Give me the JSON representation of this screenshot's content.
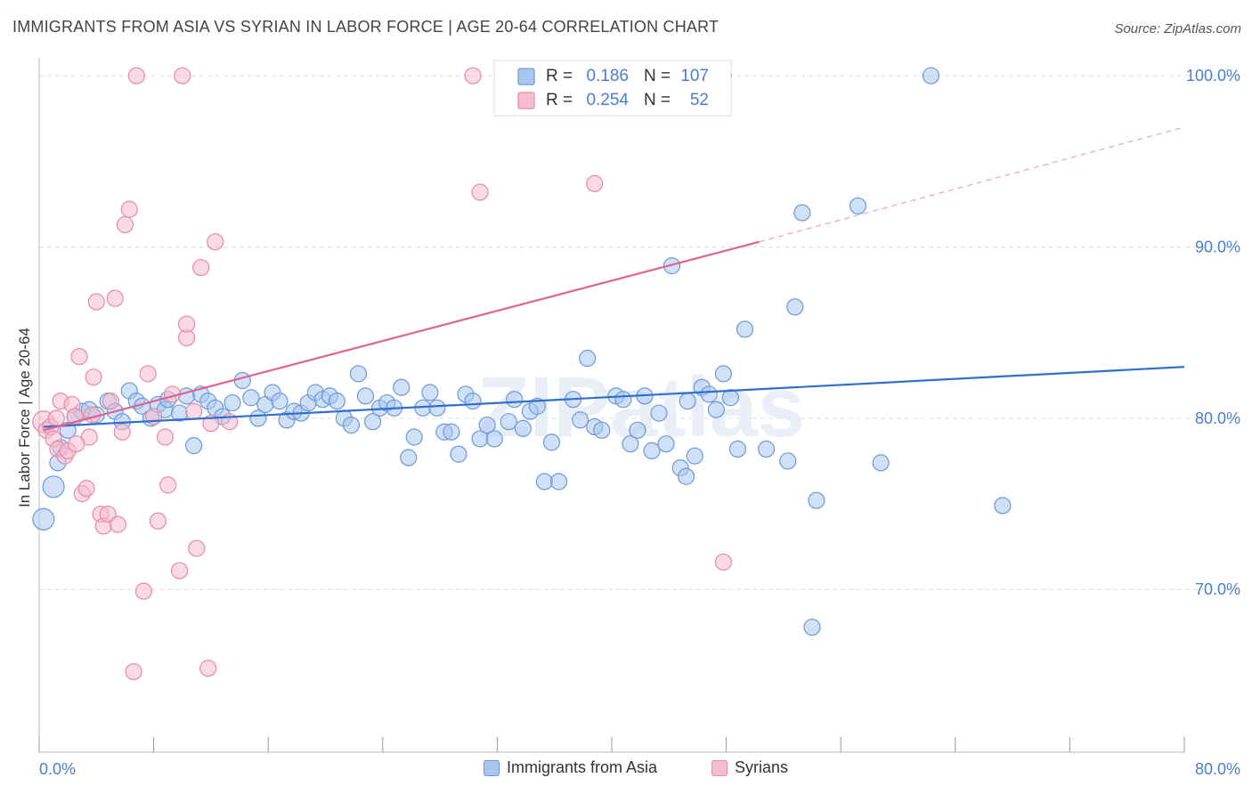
{
  "header": {
    "title": "IMMIGRANTS FROM ASIA VS SYRIAN IN LABOR FORCE | AGE 20-64 CORRELATION CHART",
    "source": "Source: ZipAtlas.com"
  },
  "watermark": "ZIPatlas",
  "colors": {
    "blue_fill": "#a9c7ee",
    "blue_stroke": "#6c9ad6",
    "blue_line": "#2f6fcf",
    "pink_fill": "#f6bcd0",
    "pink_stroke": "#e58aa9",
    "pink_line": "#e0628e",
    "tick_label": "#4a7fd0",
    "grid": "#dddddd"
  },
  "legend_stats": {
    "rows": [
      {
        "r_label": "R =",
        "r_value": "0.186",
        "n_label": "N =",
        "n_value": "107"
      },
      {
        "r_label": "R =",
        "r_value": "0.254",
        "n_label": "N =",
        "n_value": "52"
      }
    ]
  },
  "legend_bottom": [
    "Immigrants from Asia",
    "Syrians"
  ],
  "chart_data": {
    "type": "scatter",
    "title": "IMMIGRANTS FROM ASIA VS SYRIAN IN LABOR FORCE | AGE 20-64 CORRELATION CHART",
    "xlabel": "",
    "ylabel": "In Labor Force | Age 20-64",
    "xlim": [
      0,
      80
    ],
    "ylim": [
      60.5,
      101.2
    ],
    "x_tick_labels": [
      "0.0%",
      "80.0%"
    ],
    "y_ticks": [
      70,
      80,
      90,
      100
    ],
    "y_tick_labels": [
      "70.0%",
      "80.0%",
      "90.0%",
      "100.0%"
    ],
    "grid": "horizontal dashed",
    "series": [
      {
        "name": "Immigrants from Asia",
        "color": "#a9c7ee",
        "r": 0.186,
        "n": 107,
        "trend": {
          "x": [
            0.3,
            80
          ],
          "y": [
            79.5,
            83.0
          ]
        },
        "points": [
          [
            0.3,
            74.1,
            2
          ],
          [
            1.0,
            76.0,
            2
          ],
          [
            1.3,
            77.4,
            1
          ],
          [
            1.5,
            78.3,
            1
          ],
          [
            2.0,
            79.3,
            1
          ],
          [
            2.5,
            80.1,
            1
          ],
          [
            3.0,
            80.4,
            1
          ],
          [
            3.5,
            80.5,
            1
          ],
          [
            4.0,
            80.2,
            1
          ],
          [
            4.8,
            81.0,
            1
          ],
          [
            5.3,
            80.4,
            1
          ],
          [
            5.8,
            79.8,
            1
          ],
          [
            6.3,
            81.6,
            1
          ],
          [
            6.8,
            81.0,
            1
          ],
          [
            7.2,
            80.7,
            1
          ],
          [
            7.8,
            80.0,
            1
          ],
          [
            8.3,
            80.8,
            1
          ],
          [
            8.8,
            80.5,
            1
          ],
          [
            9.0,
            81.1,
            1
          ],
          [
            9.8,
            80.3,
            1
          ],
          [
            10.3,
            81.3,
            1
          ],
          [
            10.8,
            78.4,
            1
          ],
          [
            11.3,
            81.4,
            1
          ],
          [
            11.8,
            81.0,
            1
          ],
          [
            12.3,
            80.6,
            1
          ],
          [
            12.8,
            80.1,
            1
          ],
          [
            13.5,
            80.9,
            1
          ],
          [
            14.2,
            82.2,
            1
          ],
          [
            14.8,
            81.2,
            1
          ],
          [
            15.3,
            80.0,
            1
          ],
          [
            15.8,
            80.8,
            1
          ],
          [
            16.3,
            81.5,
            1
          ],
          [
            16.8,
            81.0,
            1
          ],
          [
            17.3,
            79.9,
            1
          ],
          [
            17.8,
            80.4,
            1
          ],
          [
            18.3,
            80.3,
            1
          ],
          [
            18.8,
            80.9,
            1
          ],
          [
            19.3,
            81.5,
            1
          ],
          [
            19.8,
            81.1,
            1
          ],
          [
            20.3,
            81.3,
            1
          ],
          [
            20.8,
            81.0,
            1
          ],
          [
            21.3,
            80.0,
            1
          ],
          [
            21.8,
            79.6,
            1
          ],
          [
            22.3,
            82.6,
            1
          ],
          [
            22.8,
            81.3,
            1
          ],
          [
            23.3,
            79.8,
            1
          ],
          [
            23.8,
            80.6,
            1
          ],
          [
            24.3,
            80.9,
            1
          ],
          [
            24.8,
            80.6,
            1
          ],
          [
            25.3,
            81.8,
            1
          ],
          [
            25.8,
            77.7,
            1
          ],
          [
            26.2,
            78.9,
            1
          ],
          [
            26.8,
            80.6,
            1
          ],
          [
            27.3,
            81.5,
            1
          ],
          [
            27.8,
            80.6,
            1
          ],
          [
            28.3,
            79.2,
            1
          ],
          [
            28.8,
            79.2,
            1
          ],
          [
            29.3,
            77.9,
            1
          ],
          [
            29.8,
            81.4,
            1
          ],
          [
            30.3,
            81.0,
            1
          ],
          [
            30.8,
            78.8,
            1
          ],
          [
            31.3,
            79.6,
            1
          ],
          [
            31.8,
            78.8,
            1
          ],
          [
            32.8,
            79.8,
            1
          ],
          [
            33.2,
            81.1,
            1
          ],
          [
            33.8,
            79.4,
            1
          ],
          [
            34.3,
            80.4,
            1
          ],
          [
            34.8,
            80.7,
            1
          ],
          [
            35.3,
            76.3,
            1
          ],
          [
            35.8,
            78.6,
            1
          ],
          [
            36.3,
            76.3,
            1
          ],
          [
            37.3,
            81.1,
            1
          ],
          [
            37.8,
            79.9,
            1
          ],
          [
            38.3,
            83.5,
            1
          ],
          [
            38.8,
            79.5,
            1
          ],
          [
            39.3,
            79.3,
            1
          ],
          [
            40.3,
            81.3,
            1
          ],
          [
            40.8,
            81.1,
            1
          ],
          [
            41.3,
            78.5,
            1
          ],
          [
            41.8,
            79.3,
            1
          ],
          [
            42.3,
            81.3,
            1
          ],
          [
            42.8,
            78.1,
            1
          ],
          [
            43.3,
            80.3,
            1
          ],
          [
            43.8,
            78.5,
            1
          ],
          [
            44.2,
            88.9,
            1
          ],
          [
            44.8,
            77.1,
            1
          ],
          [
            45.2,
            76.6,
            1
          ],
          [
            45.8,
            77.8,
            1
          ],
          [
            46.3,
            81.8,
            1
          ],
          [
            46.8,
            81.4,
            1
          ],
          [
            47.3,
            80.5,
            1
          ],
          [
            47.8,
            82.6,
            1
          ],
          [
            48.3,
            81.2,
            1
          ],
          [
            48.8,
            78.2,
            1
          ],
          [
            49.3,
            85.2,
            1
          ],
          [
            50.8,
            78.2,
            1
          ],
          [
            52.3,
            77.5,
            1
          ],
          [
            52.8,
            86.5,
            1
          ],
          [
            53.3,
            92.0,
            1
          ],
          [
            54.3,
            75.2,
            1
          ],
          [
            57.2,
            92.4,
            1
          ],
          [
            58.8,
            77.4,
            1
          ],
          [
            62.3,
            100.0,
            1
          ],
          [
            67.3,
            74.9,
            1
          ],
          [
            54.0,
            67.8,
            1
          ],
          [
            47.8,
            100.0,
            1
          ],
          [
            45.3,
            81.0,
            1
          ]
        ]
      },
      {
        "name": "Syrians",
        "color": "#f6bcd0",
        "r": 0.254,
        "n": 52,
        "trend": {
          "x": [
            0.3,
            50.3
          ],
          "y": [
            79.3,
            90.3
          ],
          "dashed_to": {
            "x": 80,
            "y": 97.0
          }
        },
        "points": [
          [
            0.3,
            79.8,
            2
          ],
          [
            0.5,
            79.3,
            1
          ],
          [
            0.8,
            79.5,
            1
          ],
          [
            1.0,
            78.8,
            1
          ],
          [
            1.3,
            78.2,
            1
          ],
          [
            1.5,
            81.0,
            1
          ],
          [
            1.8,
            77.8,
            1
          ],
          [
            2.0,
            78.1,
            1
          ],
          [
            2.3,
            80.8,
            1
          ],
          [
            2.5,
            80.1,
            1
          ],
          [
            2.8,
            83.6,
            1
          ],
          [
            3.0,
            75.6,
            1
          ],
          [
            3.3,
            75.9,
            1
          ],
          [
            3.5,
            78.9,
            1
          ],
          [
            3.8,
            82.4,
            1
          ],
          [
            4.0,
            86.8,
            1
          ],
          [
            4.3,
            74.4,
            1
          ],
          [
            4.5,
            73.7,
            1
          ],
          [
            4.8,
            74.4,
            1
          ],
          [
            5.0,
            81.0,
            1
          ],
          [
            5.3,
            87.0,
            1
          ],
          [
            5.5,
            73.8,
            1
          ],
          [
            5.8,
            79.2,
            1
          ],
          [
            6.0,
            91.3,
            1
          ],
          [
            6.3,
            92.2,
            1
          ],
          [
            6.6,
            65.2,
            1
          ],
          [
            6.8,
            100.0,
            1
          ],
          [
            7.3,
            69.9,
            1
          ],
          [
            7.6,
            82.6,
            1
          ],
          [
            8.0,
            80.1,
            1
          ],
          [
            8.3,
            74.0,
            1
          ],
          [
            8.8,
            78.9,
            1
          ],
          [
            9.0,
            76.1,
            1
          ],
          [
            9.3,
            81.4,
            1
          ],
          [
            9.8,
            71.1,
            1
          ],
          [
            10.0,
            100.0,
            1
          ],
          [
            10.3,
            84.7,
            1
          ],
          [
            10.3,
            85.5,
            1
          ],
          [
            10.8,
            80.4,
            1
          ],
          [
            11.0,
            72.4,
            1
          ],
          [
            11.3,
            88.8,
            1
          ],
          [
            11.8,
            65.4,
            1
          ],
          [
            12.3,
            90.3,
            1
          ],
          [
            13.3,
            79.8,
            1
          ],
          [
            30.3,
            100.0,
            1
          ],
          [
            30.8,
            93.2,
            1
          ],
          [
            38.8,
            93.7,
            1
          ],
          [
            47.8,
            71.6,
            1
          ],
          [
            1.2,
            80.0,
            1
          ],
          [
            2.6,
            78.5,
            1
          ],
          [
            3.7,
            80.2,
            1
          ],
          [
            12.0,
            79.7,
            1
          ]
        ]
      }
    ]
  }
}
